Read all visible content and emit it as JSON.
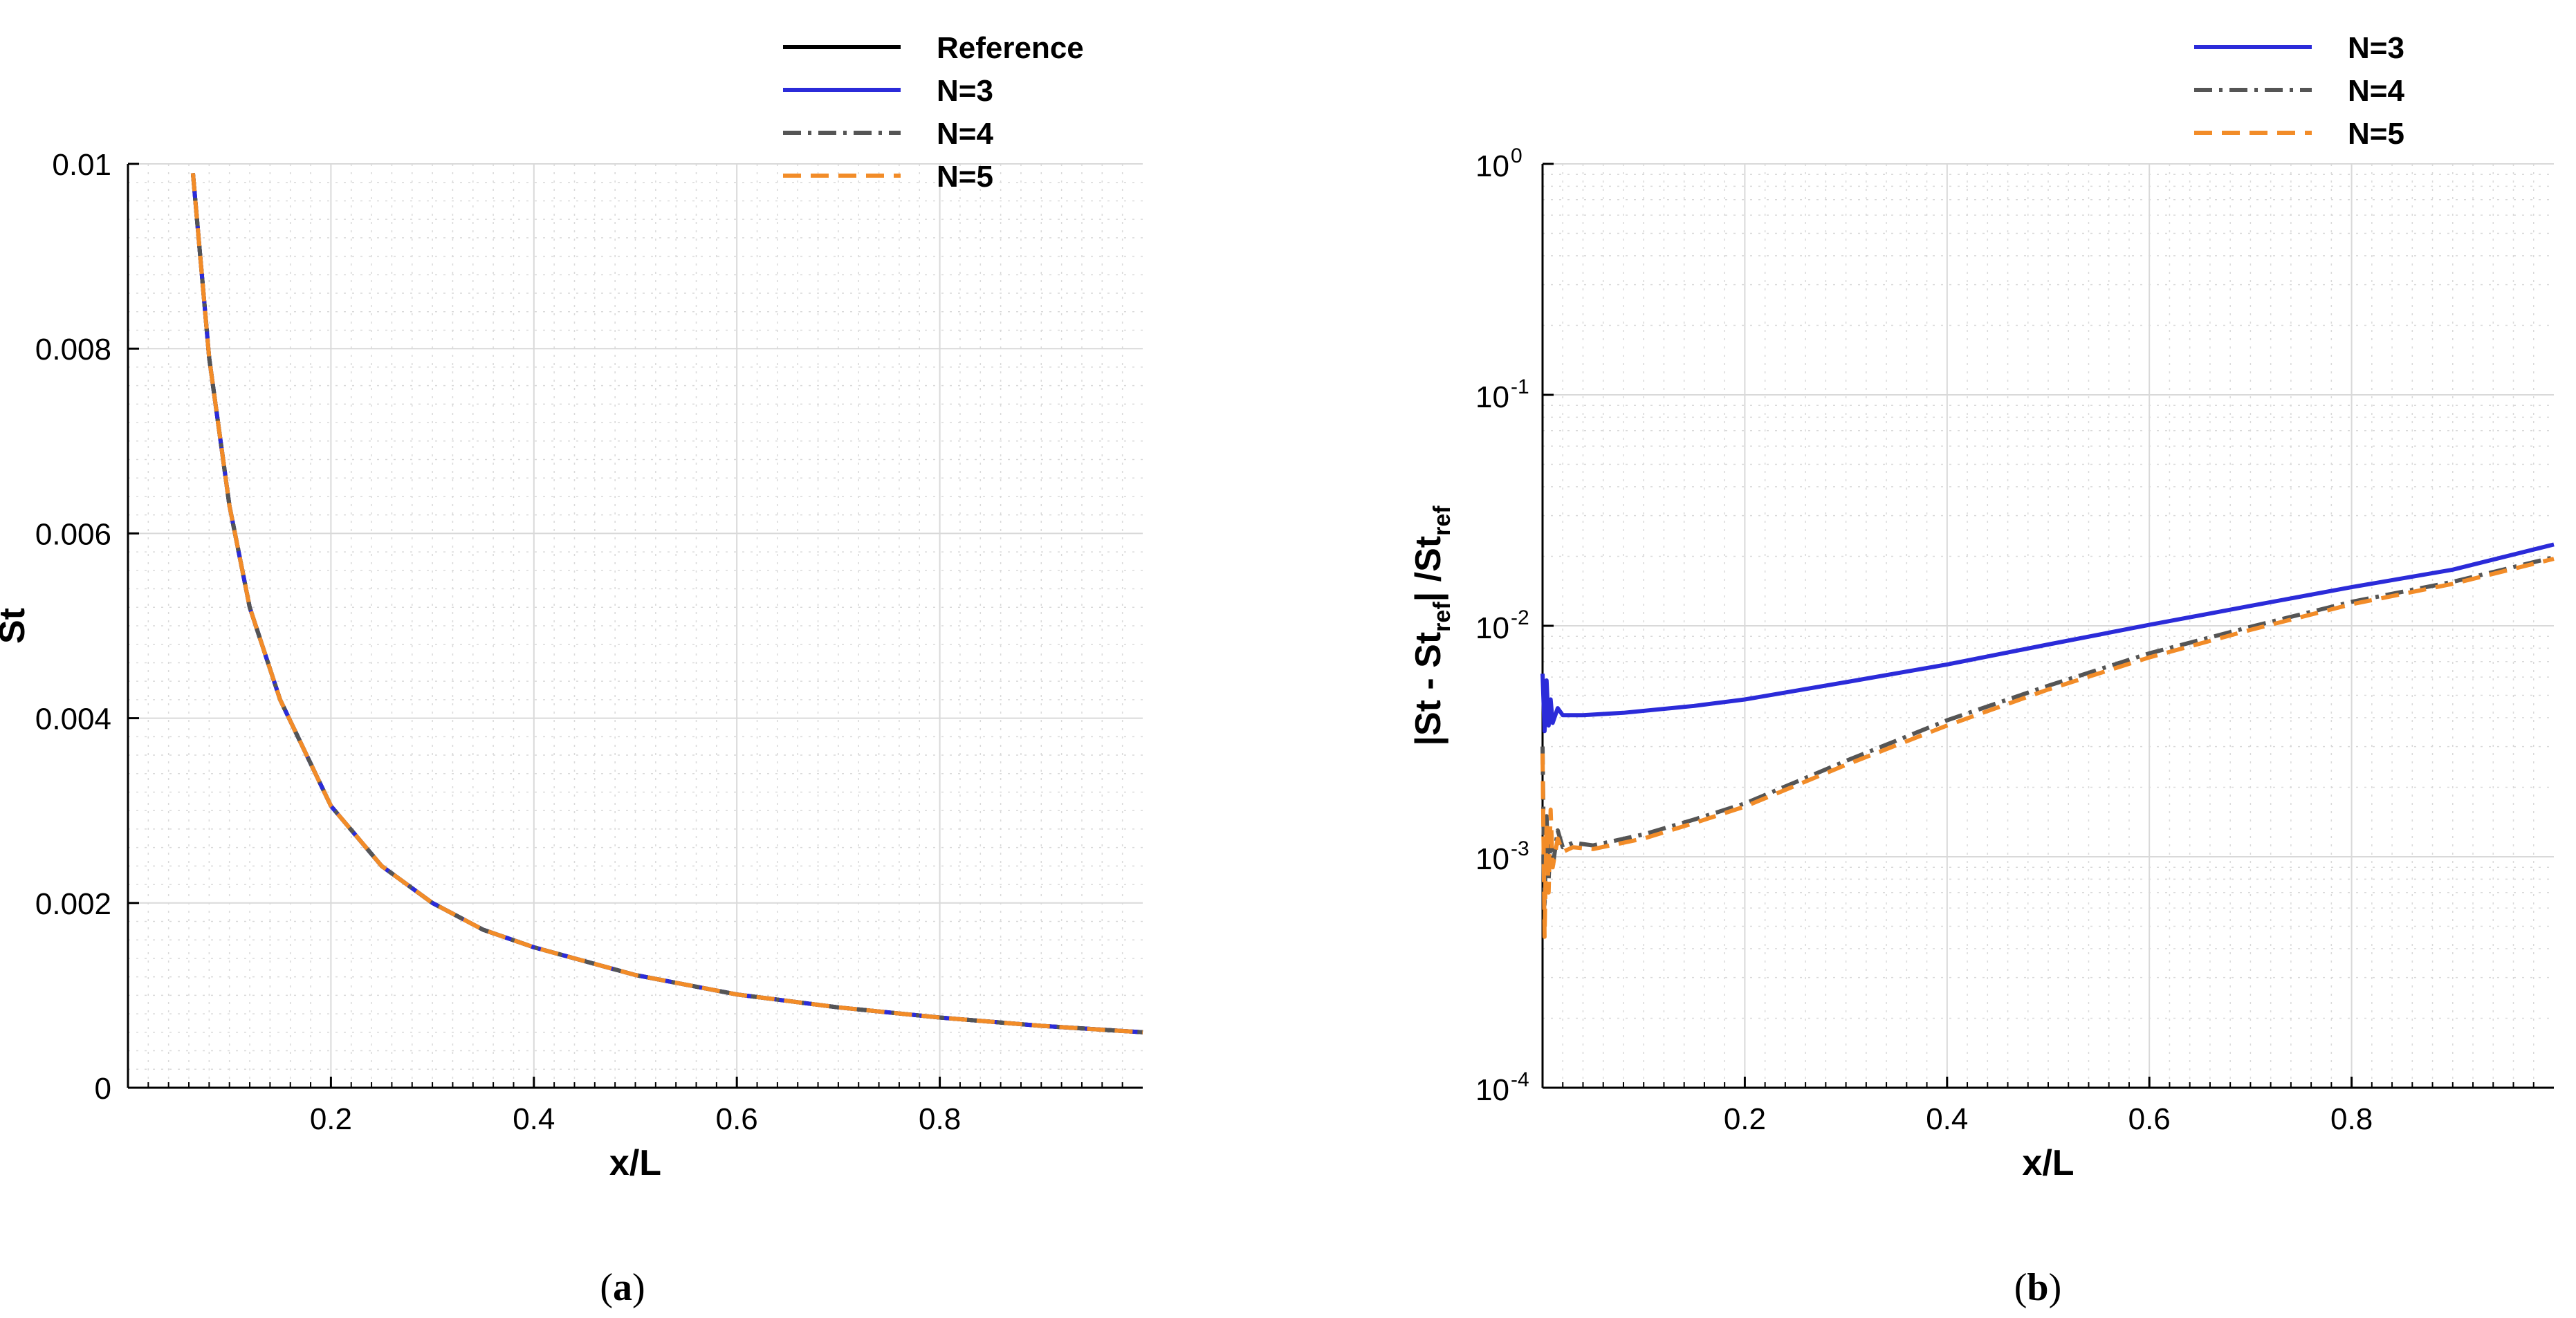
{
  "chart_data": [
    {
      "type": "line",
      "panel_label": "a",
      "xlabel": "x/L",
      "ylabel": "St",
      "xlim": [
        0,
        1
      ],
      "ylim": [
        0,
        0.01
      ],
      "x_ticks": [
        0.2,
        0.4,
        0.6,
        0.8
      ],
      "x_tick_labels": [
        "0.2",
        "0.4",
        "0.6",
        "0.8"
      ],
      "y_ticks": [
        0,
        0.002,
        0.004,
        0.006,
        0.008,
        0.01
      ],
      "y_tick_labels": [
        "0",
        "0.002",
        "0.004",
        "0.006",
        "0.008",
        "0.01"
      ],
      "grid": true,
      "legend_position": "top-right",
      "series": [
        {
          "name": "Reference",
          "color": "#000000",
          "style": "solid",
          "x": [
            0.064,
            0.08,
            0.1,
            0.12,
            0.15,
            0.2,
            0.25,
            0.3,
            0.35,
            0.4,
            0.5,
            0.6,
            0.7,
            0.8,
            0.9,
            1.0
          ],
          "y": [
            0.0099,
            0.0079,
            0.0063,
            0.0052,
            0.0042,
            0.00305,
            0.0024,
            0.002,
            0.00171,
            0.00152,
            0.00122,
            0.00101,
            0.00087,
            0.00076,
            0.00067,
            0.0006
          ]
        },
        {
          "name": "N=3",
          "color": "#2b2bd9",
          "style": "solid",
          "x": [
            0.064,
            0.08,
            0.1,
            0.12,
            0.15,
            0.2,
            0.25,
            0.3,
            0.35,
            0.4,
            0.5,
            0.6,
            0.7,
            0.8,
            0.9,
            1.0
          ],
          "y": [
            0.0099,
            0.0079,
            0.0063,
            0.0052,
            0.0042,
            0.00305,
            0.0024,
            0.002,
            0.00171,
            0.00152,
            0.00122,
            0.00101,
            0.00087,
            0.00076,
            0.00067,
            0.0006
          ]
        },
        {
          "name": "N=4",
          "color": "#555555",
          "style": "dashdot",
          "x": [
            0.064,
            0.08,
            0.1,
            0.12,
            0.15,
            0.2,
            0.25,
            0.3,
            0.35,
            0.4,
            0.5,
            0.6,
            0.7,
            0.8,
            0.9,
            1.0
          ],
          "y": [
            0.0099,
            0.0079,
            0.0063,
            0.0052,
            0.0042,
            0.00305,
            0.0024,
            0.002,
            0.00171,
            0.00152,
            0.00122,
            0.00101,
            0.00087,
            0.00076,
            0.00067,
            0.0006
          ]
        },
        {
          "name": "N=5",
          "color": "#f28c28",
          "style": "dashed",
          "x": [
            0.064,
            0.08,
            0.1,
            0.12,
            0.15,
            0.2,
            0.25,
            0.3,
            0.35,
            0.4,
            0.5,
            0.6,
            0.7,
            0.8,
            0.9,
            1.0
          ],
          "y": [
            0.0099,
            0.0079,
            0.0063,
            0.0052,
            0.0042,
            0.00305,
            0.0024,
            0.002,
            0.00171,
            0.00152,
            0.00122,
            0.00101,
            0.00087,
            0.00076,
            0.00067,
            0.0006
          ]
        }
      ]
    },
    {
      "type": "line",
      "panel_label": "b",
      "xlabel": "x/L",
      "ylabel_parts": [
        "|St - St",
        "ref",
        "| /St",
        "ref"
      ],
      "yscale": "log",
      "xlim": [
        0,
        1
      ],
      "ylim": [
        0.0001,
        1
      ],
      "x_ticks": [
        0.2,
        0.4,
        0.6,
        0.8
      ],
      "x_tick_labels": [
        "0.2",
        "0.4",
        "0.6",
        "0.8"
      ],
      "y_ticks": [
        0.0001,
        0.001,
        0.01,
        0.1,
        1
      ],
      "y_tick_bases": [
        "10",
        "10",
        "10",
        "10",
        "10"
      ],
      "y_tick_exponents": [
        "-4",
        "-3",
        "-2",
        "-1",
        "0"
      ],
      "grid": true,
      "legend_position": "top-right",
      "series": [
        {
          "name": "N=3",
          "color": "#2b2bd9",
          "style": "solid",
          "x": [
            0.0,
            0.002,
            0.004,
            0.006,
            0.008,
            0.01,
            0.015,
            0.02,
            0.04,
            0.08,
            0.15,
            0.2,
            0.3,
            0.4,
            0.5,
            0.6,
            0.7,
            0.8,
            0.9,
            1.0
          ],
          "y": [
            0.0062,
            0.0035,
            0.0058,
            0.0037,
            0.0048,
            0.0038,
            0.0044,
            0.0041,
            0.0041,
            0.0042,
            0.0045,
            0.0048,
            0.0057,
            0.0068,
            0.0083,
            0.0101,
            0.0122,
            0.0147,
            0.0175,
            0.0225
          ]
        },
        {
          "name": "N=4",
          "color": "#555555",
          "style": "dashdot",
          "x": [
            0.0,
            0.002,
            0.004,
            0.006,
            0.008,
            0.01,
            0.015,
            0.02,
            0.03,
            0.05,
            0.1,
            0.15,
            0.2,
            0.3,
            0.4,
            0.5,
            0.6,
            0.7,
            0.8,
            0.9,
            1.0
          ],
          "y": [
            0.003,
            0.0006,
            0.0015,
            0.0008,
            0.0012,
            0.0009,
            0.0013,
            0.0011,
            0.00115,
            0.00112,
            0.00125,
            0.00145,
            0.0017,
            0.0026,
            0.0039,
            0.0055,
            0.0076,
            0.0099,
            0.0127,
            0.0155,
            0.0198
          ]
        },
        {
          "name": "N=5",
          "color": "#f28c28",
          "style": "dashed",
          "x": [
            0.0,
            0.002,
            0.004,
            0.006,
            0.008,
            0.01,
            0.015,
            0.02,
            0.03,
            0.05,
            0.1,
            0.15,
            0.2,
            0.3,
            0.4,
            0.5,
            0.6,
            0.7,
            0.8,
            0.9,
            1.0
          ],
          "y": [
            0.0028,
            0.00045,
            0.0014,
            0.0007,
            0.0016,
            0.0009,
            0.0012,
            0.00105,
            0.0011,
            0.00108,
            0.0012,
            0.0014,
            0.00165,
            0.0025,
            0.0037,
            0.0053,
            0.0073,
            0.0096,
            0.0124,
            0.0152,
            0.0195
          ]
        }
      ]
    }
  ]
}
